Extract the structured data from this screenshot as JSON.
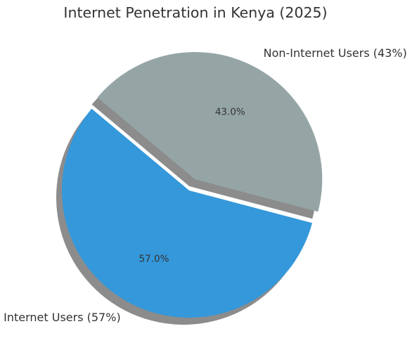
{
  "chart_data": {
    "type": "pie",
    "title": "Internet Penetration in Kenya (2025)",
    "slices": [
      {
        "label": "Internet Users (57%)",
        "value": 57.0,
        "pct_label": "57.0%",
        "color": "#3498db",
        "exploded": false
      },
      {
        "label": "Non-Internet Users (43%)",
        "value": 43.0,
        "pct_label": "43.0%",
        "color": "#95a5a6",
        "exploded": true
      }
    ],
    "start_angle_deg": 140,
    "shadow": true,
    "legend": "none"
  }
}
